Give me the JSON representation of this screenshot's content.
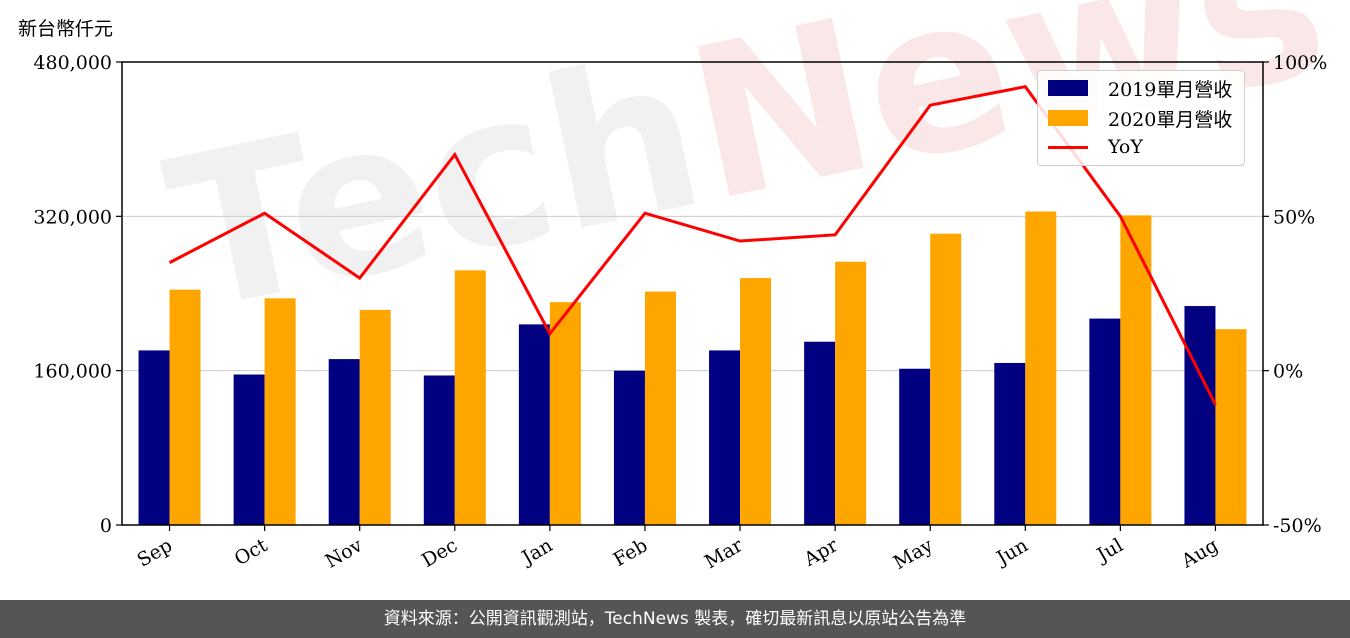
{
  "unit_label": "新台幣仟元",
  "footer": "資料來源：公開資訊觀測站，TechNews 製表，確切最新訊息以原站公告為準",
  "watermark": {
    "part1": "Tech",
    "part2": "News"
  },
  "colors": {
    "bar2019": "#000080",
    "bar2020": "#FFA500",
    "yoy": "#FF0000",
    "grid": "#cccccc"
  },
  "chart_data": {
    "type": "bar",
    "categories": [
      "Sep",
      "Oct",
      "Nov",
      "Dec",
      "Jan",
      "Feb",
      "Mar",
      "Apr",
      "May",
      "Jun",
      "Jul",
      "Aug"
    ],
    "series": [
      {
        "name": "2019單月營收",
        "type": "bar",
        "axis": "left",
        "values": [
          181000,
          156000,
          172000,
          155000,
          208000,
          160000,
          181000,
          190000,
          162000,
          168000,
          214000,
          227000
        ]
      },
      {
        "name": "2020單月營收",
        "type": "bar",
        "axis": "left",
        "values": [
          244000,
          235000,
          223000,
          264000,
          231000,
          242000,
          256000,
          273000,
          302000,
          325000,
          321000,
          203000
        ]
      },
      {
        "name": "YoY",
        "type": "line",
        "axis": "right",
        "values": [
          35,
          51,
          30,
          70,
          12,
          51,
          42,
          44,
          86,
          92,
          50,
          -11
        ]
      }
    ],
    "left_axis": {
      "min": 0,
      "max": 480000,
      "ticks": [
        0,
        160000,
        320000,
        480000
      ],
      "tick_labels": [
        "0",
        "160,000",
        "320,000",
        "480,000"
      ]
    },
    "right_axis": {
      "min": -50,
      "max": 100,
      "ticks": [
        -50,
        0,
        50,
        100
      ],
      "tick_labels": [
        "-50%",
        "0%",
        "50%",
        "100%"
      ]
    },
    "grid": true,
    "legend_position": "top-right"
  }
}
